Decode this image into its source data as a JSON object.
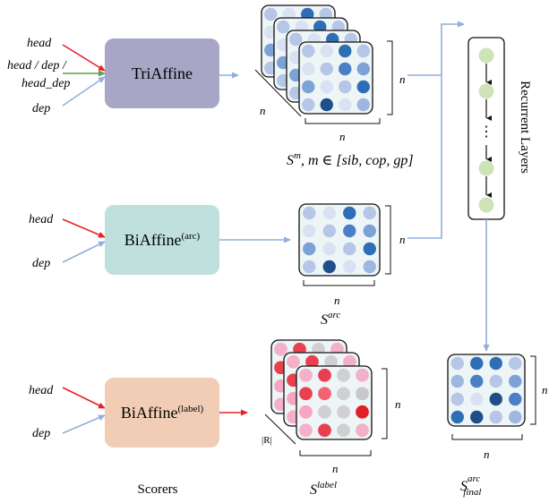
{
  "colors": {
    "triaffine_box": "#a7a6c6",
    "biaffine_arc_box": "#bfe0dd",
    "biaffine_label_box": "#f0cdb4",
    "red_arrow": "#e8202a",
    "blue_arrow": "#8fb0dc",
    "green_arrow": "#5aa24a",
    "matrix_bg": "#eef5f7",
    "rnn_node": "#cfe3b9"
  },
  "inputs": {
    "triaffine": {
      "head": "head",
      "mid_line1": "head / dep /",
      "mid_line2": "head_dep",
      "dep": "dep"
    },
    "arc": {
      "head": "head",
      "dep": "dep"
    },
    "label": {
      "head": "head",
      "dep": "dep"
    }
  },
  "scorers": {
    "triaffine": "TriAffine",
    "arc_main": "BiAffine",
    "arc_sup": "(arc)",
    "label_main": "BiAffine",
    "label_sup": "(label)",
    "caption": "Scorers"
  },
  "dims": {
    "n": "n",
    "r": "|R|"
  },
  "outputs": {
    "triaffine_caption": "S^m, m ∈ [sib, cop, gp]",
    "triaffine_S": "S",
    "triaffine_sup": "m",
    "triaffine_rest": ", m ∈ [sib, cop, gp]",
    "arc_S": "S",
    "arc_sup": "arc",
    "label_S": "S",
    "label_sup": "label",
    "final_S": "S",
    "final_sup": "arc",
    "final_sub": "final"
  },
  "rnn": {
    "label": "Recurrent Layers",
    "ellipsis": "⋮"
  }
}
